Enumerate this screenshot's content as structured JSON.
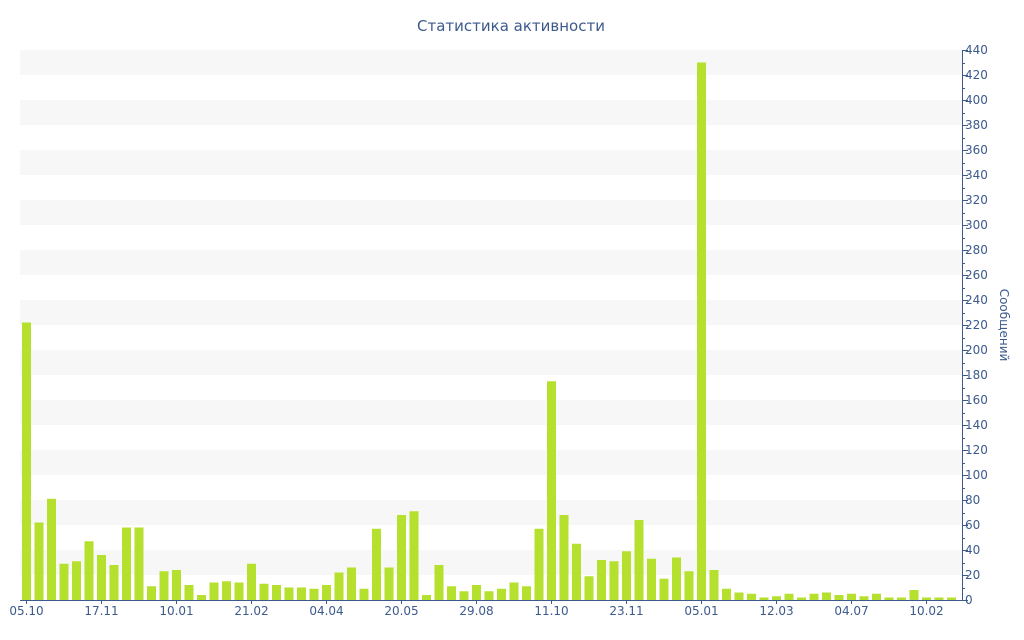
{
  "chart_data": {
    "type": "bar",
    "title": "Статистика активности",
    "xlabel": "",
    "ylabel": "Сообщений",
    "ylim": [
      0,
      440
    ],
    "ytick_step": 20,
    "yaxis_side": "right",
    "grid": "alternating horizontal bands",
    "bar_color": "#b5e02e",
    "axis_color": "#3c5a8c",
    "band_color": "#f7f7f7",
    "x_tick_labels": [
      {
        "label": "05.10",
        "index": 0
      },
      {
        "label": "17.11",
        "index": 6
      },
      {
        "label": "10.01",
        "index": 12
      },
      {
        "label": "21.02",
        "index": 18
      },
      {
        "label": "04.04",
        "index": 24
      },
      {
        "label": "20.05",
        "index": 30
      },
      {
        "label": "29.08",
        "index": 36
      },
      {
        "label": "11.10",
        "index": 42
      },
      {
        "label": "23.11",
        "index": 48
      },
      {
        "label": "05.01",
        "index": 54
      },
      {
        "label": "12.03",
        "index": 60
      },
      {
        "label": "04.07",
        "index": 66
      },
      {
        "label": "10.02",
        "index": 72
      }
    ],
    "values": [
      222,
      62,
      81,
      29,
      31,
      47,
      36,
      28,
      58,
      58,
      11,
      23,
      24,
      12,
      4,
      14,
      15,
      14,
      29,
      13,
      12,
      10,
      10,
      9,
      12,
      22,
      26,
      9,
      57,
      26,
      68,
      71,
      4,
      28,
      11,
      7,
      12,
      7,
      9,
      14,
      11,
      57,
      175,
      68,
      45,
      19,
      32,
      31,
      39,
      64,
      33,
      17,
      34,
      23,
      430,
      24,
      9,
      6,
      5,
      2,
      3,
      5,
      2,
      5,
      6,
      4,
      5,
      3,
      5,
      2,
      2,
      8,
      2,
      2,
      2
    ]
  }
}
